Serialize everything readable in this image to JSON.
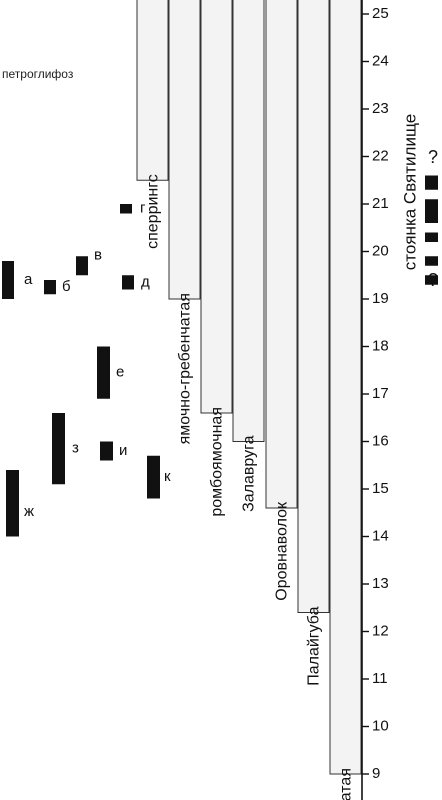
{
  "axis": {
    "ticks": [
      9,
      10,
      11,
      12,
      13,
      14,
      15,
      16,
      17,
      18,
      19,
      20,
      21,
      22,
      23,
      24,
      25
    ]
  },
  "stray_text": "петроглифоз",
  "phases": [
    {
      "id": "sperrings",
      "label": "сперрингс",
      "start": 21.5,
      "end": 25.3
    },
    {
      "id": "yamochno",
      "label": "ямочно-гребенчатая",
      "start": 19.0,
      "end": 25.3
    },
    {
      "id": "rombo",
      "label": "ромбоямочная",
      "start": 16.6,
      "end": 25.3
    },
    {
      "id": "zalavruga",
      "label": "Залавруга",
      "start": 16.0,
      "end": 25.3
    },
    {
      "id": "orovnavolok",
      "label": "Оровнаволок",
      "start": 14.6,
      "end": 25.3
    },
    {
      "id": "palayguba",
      "label": "Палайгуба",
      "start": 12.4,
      "end": 25.3
    },
    {
      "id": "setchataya",
      "label": "сетчатая",
      "start": 9.0,
      "end": 25.3
    }
  ],
  "samples": [
    {
      "id": "a",
      "label": "а",
      "low": 19.0,
      "high": 19.8
    },
    {
      "id": "b",
      "label": "б",
      "low": 19.1,
      "high": 19.4
    },
    {
      "id": "v",
      "label": "в",
      "low": 19.5,
      "high": 19.9
    },
    {
      "id": "g",
      "label": "г",
      "low": 20.8,
      "high": 21.0
    },
    {
      "id": "d",
      "label": "д",
      "low": 19.2,
      "high": 19.5
    },
    {
      "id": "e",
      "label": "е",
      "low": 16.9,
      "high": 18.0
    },
    {
      "id": "z",
      "label": "з",
      "low": 15.1,
      "high": 16.6
    },
    {
      "id": "i",
      "label": "и",
      "low": 15.6,
      "high": 16.0
    },
    {
      "id": "k",
      "label": "к",
      "low": 14.8,
      "high": 15.7
    },
    {
      "id": "zh",
      "label": "ж",
      "low": 14.0,
      "high": 15.4
    }
  ],
  "site": {
    "label": "стоянка Святилище",
    "question_mark": "?",
    "segments": [
      {
        "low": 21.3,
        "high": 21.6
      },
      {
        "low": 20.6,
        "high": 21.1
      },
      {
        "low": 20.2,
        "high": 20.4
      },
      {
        "low": 19.7,
        "high": 19.9
      },
      {
        "low": 19.3,
        "high": 19.5
      }
    ]
  }
}
